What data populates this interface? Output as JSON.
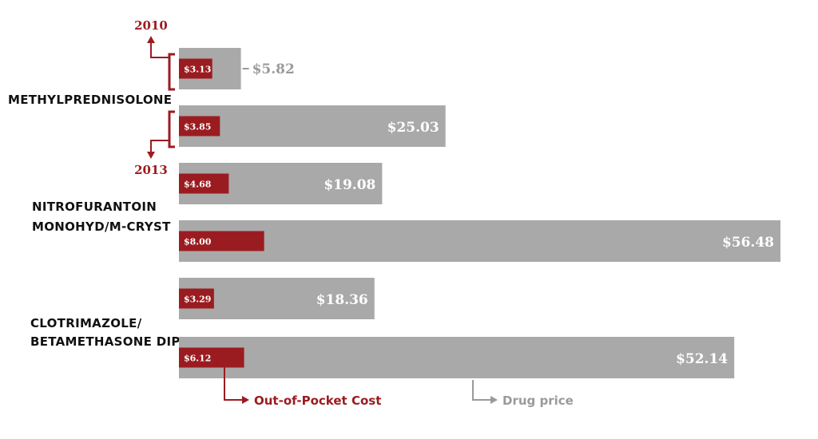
{
  "chart_data": {
    "type": "bar",
    "orientation": "horizontal",
    "years": [
      "2010",
      "2013"
    ],
    "groups": [
      {
        "label_lines": [
          "METHYLPREDNISOLONE"
        ],
        "bars": [
          {
            "year": "2010",
            "drug_price": 5.82,
            "drug_price_label": "$5.82",
            "out_of_pocket": 3.13,
            "out_of_pocket_label": "$3.13"
          },
          {
            "year": "2013",
            "drug_price": 25.03,
            "drug_price_label": "$25.03",
            "out_of_pocket": 3.85,
            "out_of_pocket_label": "$3.85"
          }
        ]
      },
      {
        "label_lines": [
          "NITROFURANTOIN",
          "MONOHYD/M-CRYST"
        ],
        "bars": [
          {
            "year": "2010",
            "drug_price": 19.08,
            "drug_price_label": "$19.08",
            "out_of_pocket": 4.68,
            "out_of_pocket_label": "$4.68"
          },
          {
            "year": "2013",
            "drug_price": 56.48,
            "drug_price_label": "$56.48",
            "out_of_pocket": 8.0,
            "out_of_pocket_label": "$8.00"
          }
        ]
      },
      {
        "label_lines": [
          "CLOTRIMAZOLE/",
          "BETAMETHASONE DIP"
        ],
        "bars": [
          {
            "year": "2010",
            "drug_price": 18.36,
            "drug_price_label": "$18.36",
            "out_of_pocket": 3.29,
            "out_of_pocket_label": "$3.29"
          },
          {
            "year": "2013",
            "drug_price": 52.14,
            "drug_price_label": "$52.14",
            "out_of_pocket": 6.12,
            "out_of_pocket_label": "$6.12"
          }
        ]
      }
    ],
    "legend": {
      "out_of_pocket": "Out-of-Pocket Cost",
      "drug_price": "Drug price"
    },
    "colors": {
      "drug_price": "#a9a9a9",
      "out_of_pocket": "#9b1c20",
      "price_label_outside": "#9a9a9a"
    }
  }
}
